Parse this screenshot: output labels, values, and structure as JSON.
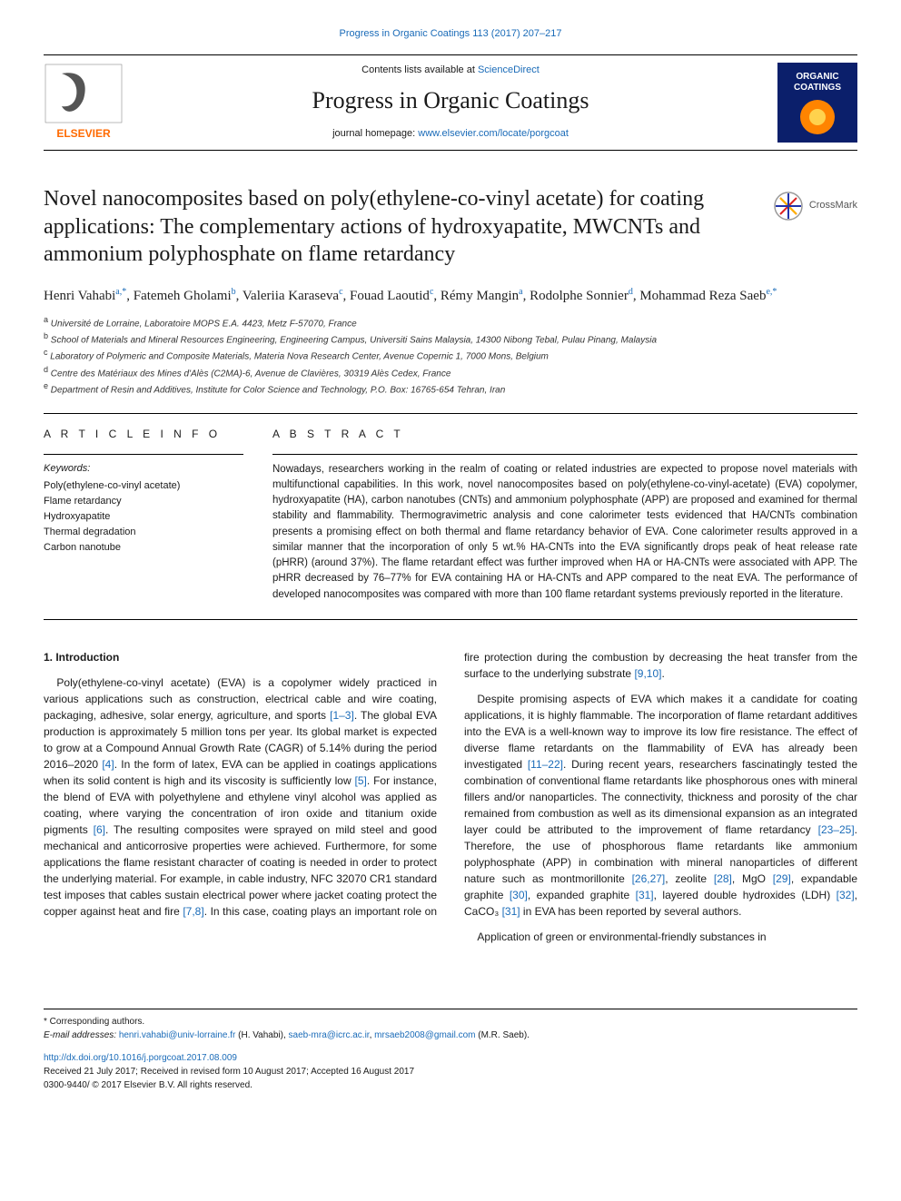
{
  "top_citation": "Progress in Organic Coatings 113 (2017) 207–217",
  "masthead": {
    "contents_prefix": "Contents lists available at ",
    "contents_link": "ScienceDirect",
    "journal": "Progress in Organic Coatings",
    "homepage_prefix": "journal homepage: ",
    "homepage_url": "www.elsevier.com/locate/porgcoat",
    "elsevier_label": "ELSEVIER",
    "cover_label_top": "ORGANIC",
    "cover_label_bot": "COATINGS"
  },
  "article": {
    "title": "Novel nanocomposites based on poly(ethylene-co-vinyl acetate) for coating applications: The complementary actions of hydroxyapatite, MWCNTs and ammonium polyphosphate on flame retardancy",
    "crossmark": "CrossMark",
    "authors_html": "Henri Vahabi<sup>a,*</sup>, Fatemeh Gholami<sup>b</sup>, Valeriia Karaseva<sup>c</sup>, Fouad Laoutid<sup>c</sup>, Rémy Mangin<sup>a</sup>, Rodolphe Sonnier<sup>d</sup>, Mohammad Reza Saeb<sup>e,*</sup>",
    "affiliations": [
      "a Université de Lorraine, Laboratoire MOPS E.A. 4423, Metz F-57070, France",
      "b School of Materials and Mineral Resources Engineering, Engineering Campus, Universiti Sains Malaysia, 14300 Nibong Tebal, Pulau Pinang, Malaysia",
      "c Laboratory of Polymeric and Composite Materials, Materia Nova Research Center, Avenue Copernic 1, 7000 Mons, Belgium",
      "d Centre des Matériaux des Mines d'Alès (C2MA)-6, Avenue de Clavières, 30319 Alès Cedex, France",
      "e Department of Resin and Additives, Institute for Color Science and Technology, P.O. Box: 16765-654 Tehran, Iran"
    ]
  },
  "info": {
    "heading": "A R T I C L E  I N F O",
    "kw_label": "Keywords:",
    "keywords": [
      "Poly(ethylene-co-vinyl acetate)",
      "Flame retardancy",
      "Hydroxyapatite",
      "Thermal degradation",
      "Carbon nanotube"
    ]
  },
  "abstract": {
    "heading": "A B S T R A C T",
    "text": "Nowadays, researchers working in the realm of coating or related industries are expected to propose novel materials with multifunctional capabilities. In this work, novel nanocomposites based on poly(ethylene-co-vinyl-acetate) (EVA) copolymer, hydroxyapatite (HA), carbon nanotubes (CNTs) and ammonium polyphosphate (APP) are proposed and examined for thermal stability and flammability. Thermogravimetric analysis and cone calorimeter tests evidenced that HA/CNTs combination presents a promising effect on both thermal and flame retardancy behavior of EVA. Cone calorimeter results approved in a similar manner that the incorporation of only 5 wt.% HA-CNTs into the EVA significantly drops peak of heat release rate (pHRR) (around 37%). The flame retardant effect was further improved when HA or HA-CNTs were associated with APP. The pHRR decreased by 76–77% for EVA containing HA or HA-CNTs and APP compared to the neat EVA. The performance of developed nanocomposites was compared with more than 100 flame retardant systems previously reported in the literature."
  },
  "intro": {
    "heading": "1. Introduction",
    "p1_a": "Poly(ethylene-co-vinyl acetate) (EVA) is a copolymer widely practiced in various applications such as construction, electrical cable and wire coating, packaging, adhesive, solar energy, agriculture, and sports ",
    "r1": "[1–3]",
    "p1_b": ". The global EVA production is approximately 5 million tons per year. Its global market is expected to grow at a Compound Annual Growth Rate (CAGR) of 5.14% during the period 2016–2020 ",
    "r2": "[4]",
    "p1_c": ". In the form of latex, EVA can be applied in coatings applications when its solid content is high and its viscosity is sufficiently low ",
    "r3": "[5]",
    "p1_d": ". For instance, the blend of EVA with polyethylene and ethylene vinyl alcohol was applied as coating, where varying the concentration of iron oxide and titanium oxide pigments ",
    "r4": "[6]",
    "p1_e": ". The resulting composites were sprayed on mild steel and good mechanical and anticorrosive properties were achieved. Furthermore, for some applications the flame resistant character of coating is needed in order to protect the underlying material. For example, in cable industry, NFC 32070 CR1 standard test imposes that cables sustain electrical power where jacket coating protect the copper against heat and fire ",
    "r5": "[7,8]",
    "p1_f": ". In this case, coating plays an important role on fire protection during the combustion by decreasing the heat transfer from the surface to the underlying substrate ",
    "r6": "[9,10]",
    "p1_g": ".",
    "p2_a": "Despite promising aspects of EVA which makes it a candidate for coating applications, it is highly flammable. The incorporation of flame retardant additives into the EVA is a well-known way to improve its low fire resistance. The effect of diverse flame retardants on the flammability of EVA has already been investigated ",
    "r7": "[11–22]",
    "p2_b": ". During recent years, researchers fascinatingly tested the combination of conventional flame retardants like phosphorous ones with mineral fillers and/or nanoparticles. The connectivity, thickness and porosity of the char remained from combustion as well as its dimensional expansion as an integrated layer could be attributed to the improvement of flame retardancy ",
    "r8": "[23–25]",
    "p2_c": ". Therefore, the use of phosphorous flame retardants like ammonium polyphosphate (APP) in combination with mineral nanoparticles of different nature such as montmorillonite ",
    "r9": "[26,27]",
    "p2_d": ", zeolite ",
    "r10": "[28]",
    "p2_e": ", MgO ",
    "r11": "[29]",
    "p2_f": ", expandable graphite ",
    "r12": "[30]",
    "p2_g": ", expanded graphite ",
    "r13": "[31]",
    "p2_h": ", layered double hydroxides (LDH) ",
    "r14": "[32]",
    "p2_i": ", CaCO₃ ",
    "r15": "[31]",
    "p2_j": " in EVA has been reported by several authors.",
    "p3": "Application of green or environmental-friendly substances in"
  },
  "footnotes": {
    "corr": "* Corresponding authors.",
    "email_label": "E-mail addresses: ",
    "email1": "henri.vahabi@univ-lorraine.fr",
    "email1_who": " (H. Vahabi), ",
    "email2": "saeb-mra@icrc.ac.ir",
    "email2_sep": ", ",
    "email3": "mrsaeb2008@gmail.com",
    "email3_who": " (M.R. Saeb)."
  },
  "doi": {
    "url": "http://dx.doi.org/10.1016/j.porgcoat.2017.08.009",
    "received": "Received 21 July 2017; Received in revised form 10 August 2017; Accepted 16 August 2017",
    "issn": "0300-9440/ © 2017 Elsevier B.V. All rights reserved."
  },
  "colors": {
    "link": "#1a6bb8",
    "text": "#1a1a1a",
    "cover_bg": "#0b1f6b",
    "cover_accent": "#ff8400",
    "elsevier_orange": "#ff6a00"
  }
}
